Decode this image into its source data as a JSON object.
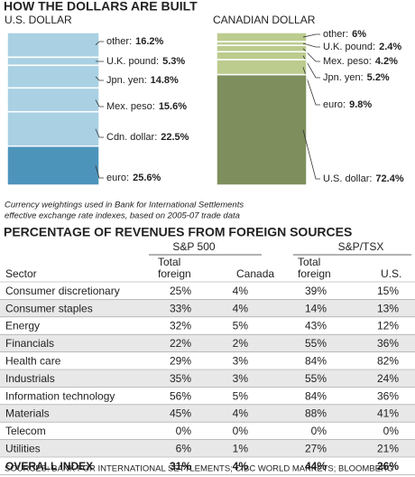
{
  "header": "HOW THE DOLLARS ARE BUILT",
  "chart_data": [
    {
      "type": "stacked-bar",
      "title": "U.S. DOLLAR",
      "categories": [
        "other:",
        "U.K. pound:",
        "Jpn. yen:",
        "Mex. peso:",
        "Cdn. dollar:",
        "euro:"
      ],
      "values": [
        16.2,
        5.3,
        14.8,
        15.6,
        22.5,
        25.6
      ],
      "value_labels": [
        "16.2%",
        "5.3%",
        "14.8%",
        "15.6%",
        "22.5%",
        "25.6%"
      ],
      "colors": [
        "#a9d0e3",
        "#a9d0e3",
        "#a9d0e3",
        "#a9d0e3",
        "#a9d0e3",
        "#4d94bb"
      ]
    },
    {
      "type": "stacked-bar",
      "title": "CANADIAN DOLLAR",
      "categories": [
        "other:",
        "U.K. pound:",
        "Mex. peso:",
        "Jpn. yen:",
        "euro:",
        "U.S. dollar:"
      ],
      "values": [
        6,
        2.4,
        4.2,
        5.2,
        9.8,
        72.4
      ],
      "value_labels": [
        "6%",
        "2.4%",
        "4.2%",
        "5.2%",
        "9.8%",
        "72.4%"
      ],
      "colors": [
        "#bccb8e",
        "#bccb8e",
        "#bccb8e",
        "#bccb8e",
        "#bccb8e",
        "#7e8f5d"
      ]
    }
  ],
  "note": [
    "Currency weightings used in Bank for International Settlements",
    "effective exchange rate indexes, based on 2005-07 trade data"
  ],
  "table": {
    "title": "PERCENTAGE OF REVENUES FROM FOREIGN SOURCES",
    "groups": [
      "S&P 500",
      "S&P/TSX"
    ],
    "columns": [
      [
        "Sector"
      ],
      [
        "Total",
        "foreign"
      ],
      [
        "Canada"
      ],
      [
        "Total",
        "foreign"
      ],
      [
        "U.S."
      ]
    ],
    "rows": [
      [
        "Consumer discretionary",
        "25%",
        "4%",
        "39%",
        "15%"
      ],
      [
        "Consumer staples",
        "33%",
        "4%",
        "14%",
        "13%"
      ],
      [
        "Energy",
        "32%",
        "5%",
        "43%",
        "12%"
      ],
      [
        "Financials",
        "22%",
        "2%",
        "55%",
        "36%"
      ],
      [
        "Health care",
        "29%",
        "3%",
        "84%",
        "82%"
      ],
      [
        "Industrials",
        "35%",
        "3%",
        "55%",
        "24%"
      ],
      [
        "Information technology",
        "56%",
        "5%",
        "84%",
        "36%"
      ],
      [
        "Materials",
        "45%",
        "4%",
        "88%",
        "41%"
      ],
      [
        "Telecom",
        "0%",
        "0%",
        "0%",
        "0%"
      ],
      [
        "Utilities",
        "6%",
        "1%",
        "27%",
        "21%"
      ],
      [
        "OVERALL INDEX",
        "31%",
        "4%",
        "44%",
        "26%"
      ]
    ]
  },
  "source": "SOURCES: BANK FOR INTERNATIONAL SETTLEMENTS; CIBC WORLD MARKETS; BLOOMBERG"
}
